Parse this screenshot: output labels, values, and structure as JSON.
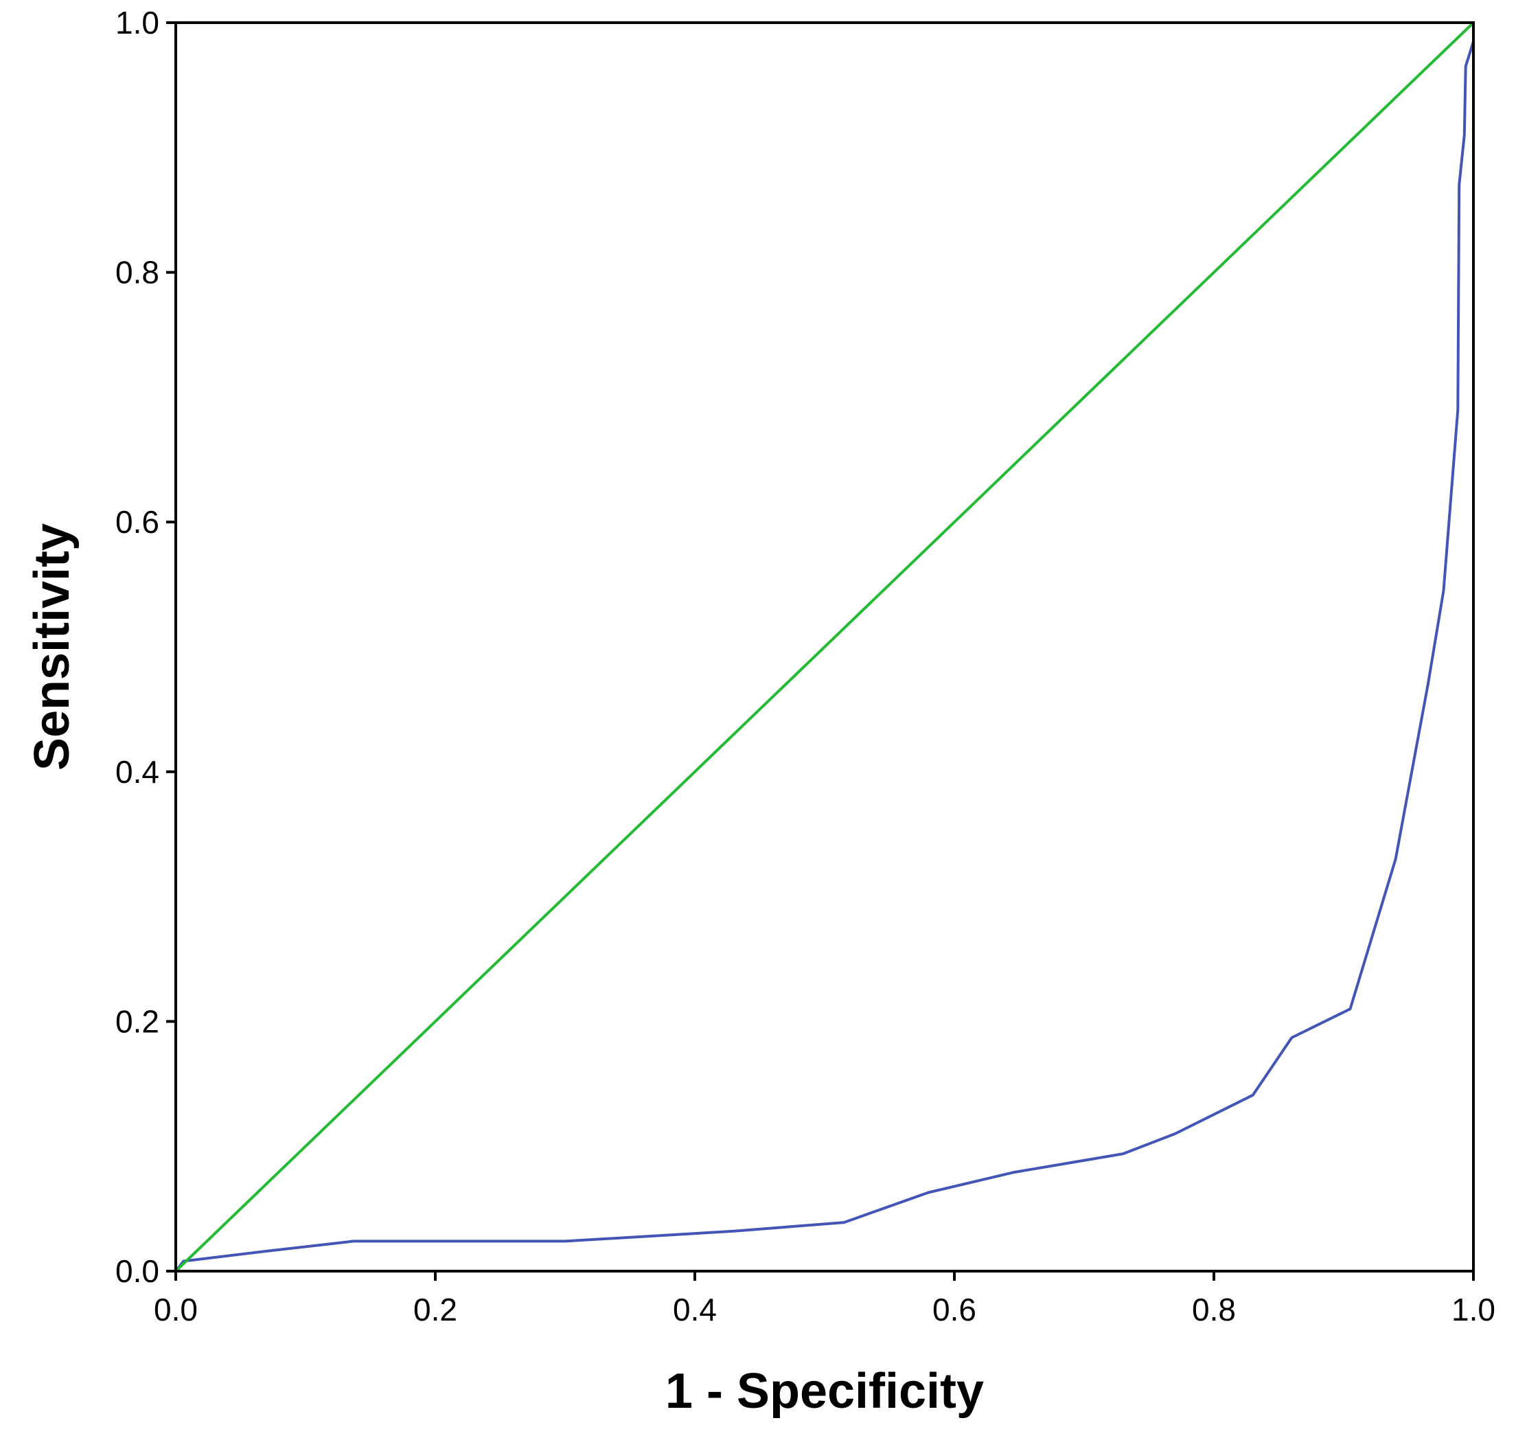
{
  "chart_data": {
    "type": "line",
    "title": "",
    "xlabel": "1 - Specificity",
    "ylabel": "Sensitivity",
    "xlim": [
      0,
      1
    ],
    "ylim": [
      0,
      1
    ],
    "x_ticks": [
      "0.0",
      "0.2",
      "0.4",
      "0.6",
      "0.8",
      "1.0"
    ],
    "y_ticks": [
      "0.0",
      "0.2",
      "0.4",
      "0.6",
      "0.8",
      "1.0"
    ],
    "x_tick_values": [
      0,
      0.2,
      0.4,
      0.6,
      0.8,
      1.0
    ],
    "y_tick_values": [
      0,
      0.2,
      0.4,
      0.6,
      0.8,
      1.0
    ],
    "grid": false,
    "legend": "none",
    "series": [
      {
        "color": "#4455b8",
        "points": [
          [
            0.0,
            0.0
          ],
          [
            0.006,
            0.008
          ],
          [
            0.07,
            0.016
          ],
          [
            0.137,
            0.024
          ],
          [
            0.3,
            0.024
          ],
          [
            0.43,
            0.032
          ],
          [
            0.515,
            0.039
          ],
          [
            0.58,
            0.063
          ],
          [
            0.645,
            0.079
          ],
          [
            0.73,
            0.094
          ],
          [
            0.77,
            0.11
          ],
          [
            0.83,
            0.141
          ],
          [
            0.86,
            0.187
          ],
          [
            0.905,
            0.21
          ],
          [
            0.94,
            0.33
          ],
          [
            0.965,
            0.47
          ],
          [
            0.977,
            0.545
          ],
          [
            0.988,
            0.69
          ],
          [
            0.989,
            0.87
          ],
          [
            0.993,
            0.91
          ],
          [
            0.994,
            0.965
          ],
          [
            1.0,
            0.985
          ],
          [
            1.0,
            1.0
          ]
        ]
      },
      {
        "color": "#22bb33",
        "points": [
          [
            0.0,
            0.0
          ],
          [
            1.0,
            1.0
          ]
        ]
      }
    ]
  }
}
